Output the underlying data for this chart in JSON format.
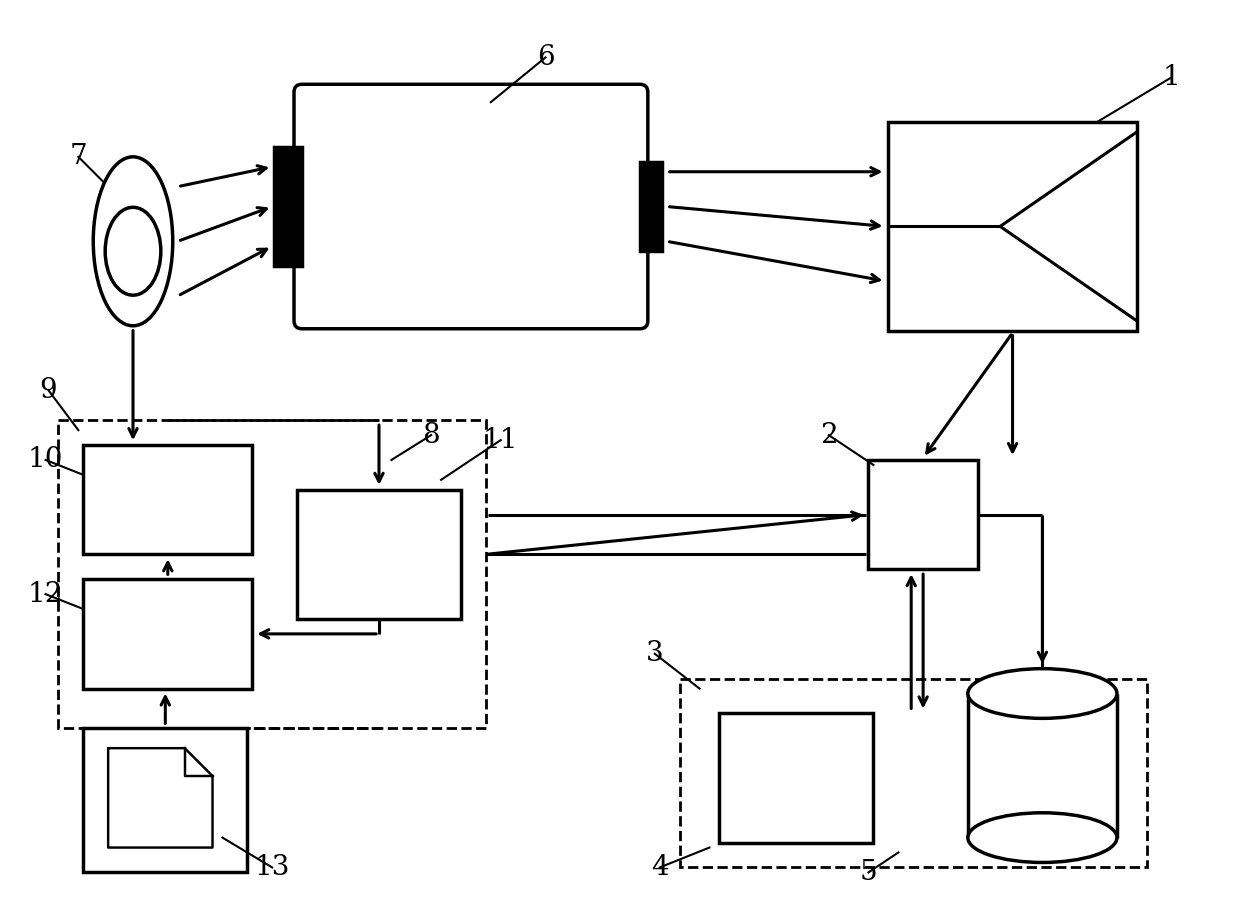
{
  "bg_color": "#ffffff",
  "lc": "#000000",
  "lw": 2.2,
  "lw_thick": 2.5,
  "figsize": [
    12.4,
    9.05
  ],
  "dpi": 100
}
